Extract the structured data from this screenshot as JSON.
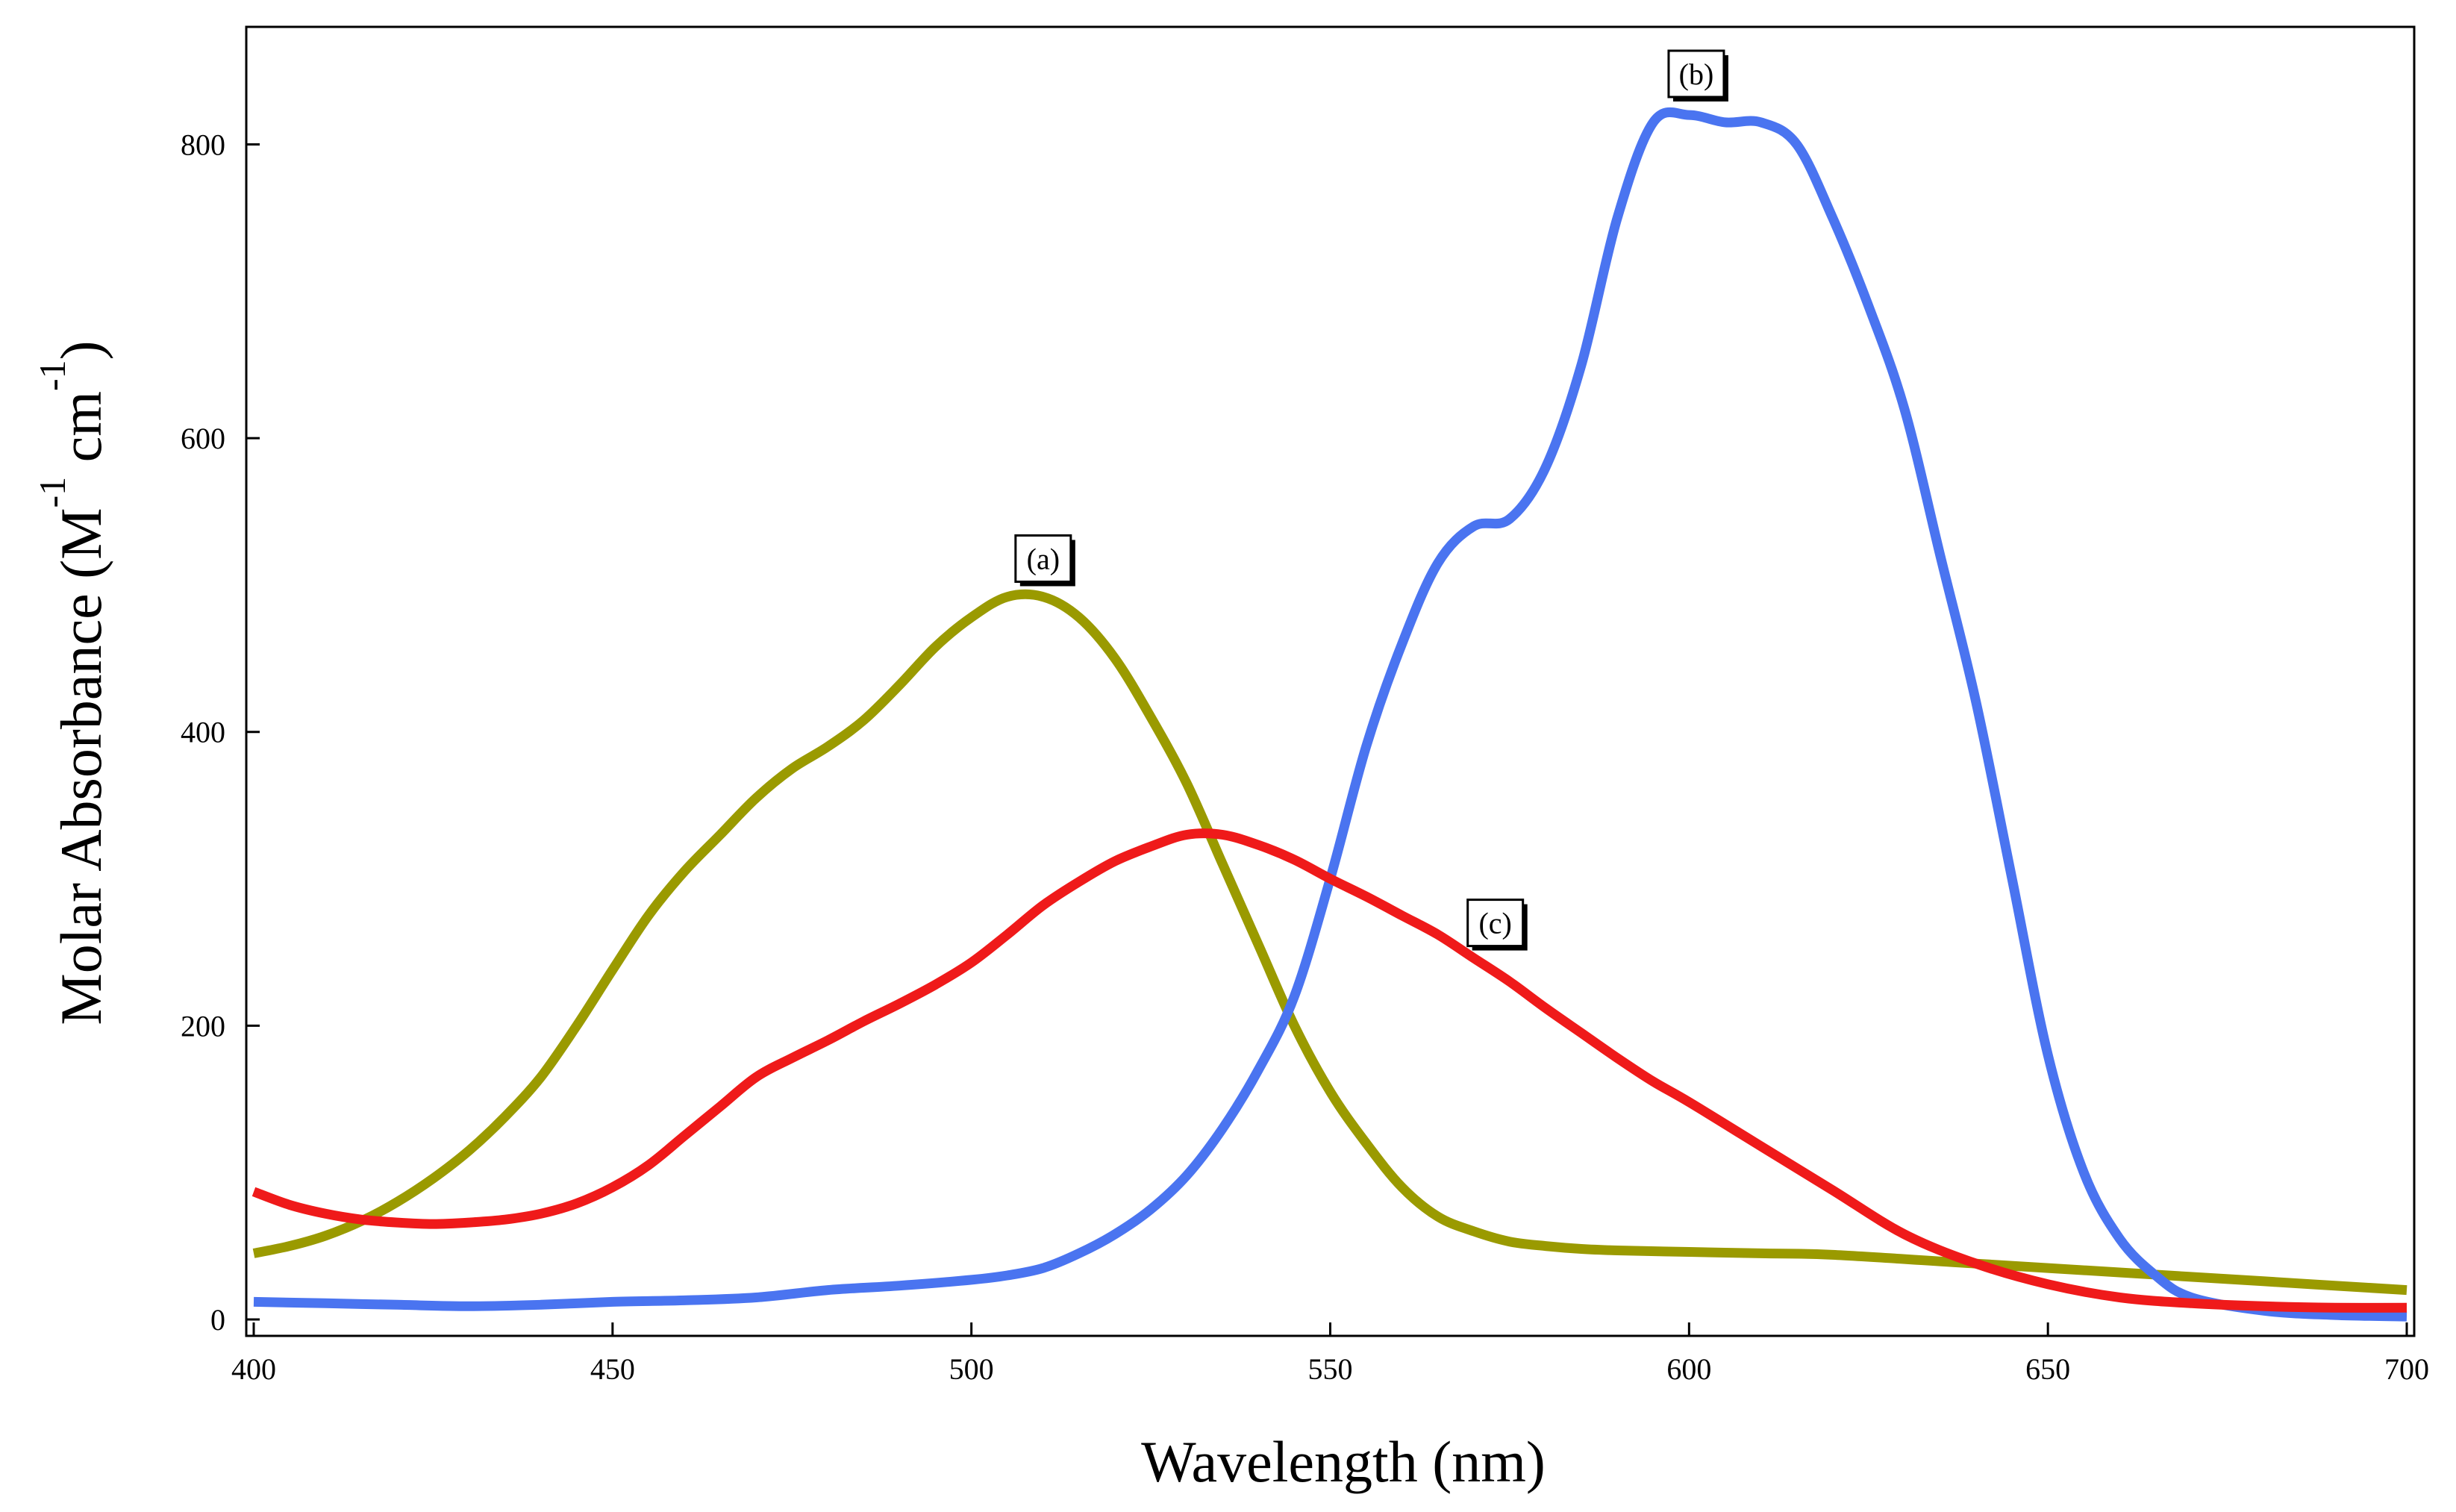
{
  "chart_data": {
    "type": "line",
    "title": "",
    "xlabel": "Wavelength (nm)",
    "ylabel": {
      "main": "Molar Absorbance (M",
      "unit_middle": " cm",
      "unit_end": ")",
      "exp1": "-1",
      "exp2": "-1"
    },
    "xlim": [
      400,
      700
    ],
    "ylim": [
      0,
      880
    ],
    "xticks": [
      400,
      450,
      500,
      550,
      600,
      650,
      700
    ],
    "yticks": [
      0,
      200,
      400,
      600,
      800
    ],
    "grid": false,
    "legend": "none",
    "series": [
      {
        "name": "(a)",
        "color": "#9a9a00",
        "x": [
          400,
          405,
          410,
          415,
          420,
          425,
          430,
          435,
          440,
          445,
          450,
          455,
          460,
          465,
          470,
          475,
          480,
          485,
          490,
          495,
          500,
          505,
          510,
          515,
          520,
          525,
          530,
          535,
          540,
          545,
          550,
          555,
          560,
          565,
          570,
          575,
          580,
          585,
          590,
          600,
          610,
          620,
          640,
          660,
          680,
          700
        ],
        "y": [
          45,
          50,
          57,
          67,
          80,
          96,
          115,
          138,
          165,
          200,
          238,
          275,
          305,
          330,
          355,
          375,
          390,
          408,
          432,
          458,
          478,
          492,
          492,
          478,
          450,
          410,
          365,
          310,
          255,
          200,
          155,
          120,
          90,
          70,
          60,
          53,
          50,
          48,
          47,
          46,
          45,
          44,
          38,
          32,
          26,
          20
        ]
      },
      {
        "name": "(b)",
        "color": "#4a74f0",
        "x": [
          400,
          410,
          420,
          430,
          440,
          450,
          460,
          470,
          480,
          490,
          500,
          505,
          510,
          515,
          520,
          525,
          530,
          535,
          540,
          545,
          550,
          555,
          560,
          565,
          570,
          575,
          580,
          585,
          590,
          595,
          600,
          605,
          610,
          615,
          620,
          625,
          630,
          635,
          640,
          645,
          650,
          655,
          660,
          665,
          670,
          680,
          690,
          700
        ],
        "y": [
          12,
          11,
          10,
          9,
          10,
          12,
          13,
          15,
          20,
          23,
          27,
          30,
          35,
          45,
          58,
          75,
          98,
          130,
          170,
          220,
          300,
          390,
          460,
          515,
          540,
          545,
          580,
          650,
          750,
          815,
          820,
          815,
          815,
          800,
          750,
          690,
          620,
          520,
          420,
          300,
          180,
          100,
          55,
          30,
          15,
          6,
          3,
          2
        ]
      },
      {
        "name": "(c)",
        "color": "#ef1a1a",
        "x": [
          400,
          405,
          410,
          415,
          420,
          425,
          430,
          435,
          440,
          445,
          450,
          455,
          460,
          465,
          470,
          475,
          480,
          485,
          490,
          495,
          500,
          505,
          510,
          515,
          520,
          525,
          530,
          535,
          540,
          545,
          550,
          555,
          560,
          565,
          570,
          575,
          580,
          585,
          590,
          595,
          600,
          610,
          620,
          630,
          640,
          650,
          660,
          670,
          680,
          690,
          700
        ],
        "y": [
          87,
          78,
          72,
          68,
          66,
          65,
          66,
          68,
          72,
          79,
          90,
          105,
          125,
          145,
          165,
          178,
          190,
          203,
          215,
          228,
          243,
          262,
          282,
          298,
          312,
          322,
          330,
          330,
          323,
          313,
          300,
          288,
          275,
          262,
          246,
          230,
          212,
          195,
          178,
          162,
          148,
          118,
          88,
          58,
          38,
          24,
          15,
          11,
          9,
          8,
          8
        ]
      }
    ],
    "annotations": [
      {
        "text": "(a)",
        "x": 510,
        "y": 518
      },
      {
        "text": "(b)",
        "x": 601,
        "y": 848
      },
      {
        "text": "(c)",
        "x": 573,
        "y": 270
      }
    ]
  }
}
